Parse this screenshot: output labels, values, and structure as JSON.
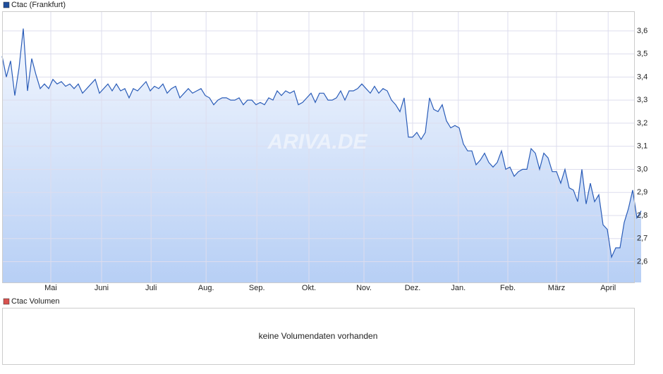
{
  "chart_data": {
    "type": "line",
    "legend": "Ctac (Frankfurt)",
    "legend_color": "#1f4e9c",
    "watermark": "ARIVA.DE",
    "volume_legend": "Ctac Volumen",
    "volume_legend_color": "#d9534f",
    "volume_message": "keine Volumendaten vorhanden",
    "grid": true,
    "line_color": "#2a5cb8",
    "xlim": [
      0,
      149.33
    ],
    "xticks": [
      {
        "value": 11.5,
        "label": "Mai"
      },
      {
        "value": 23.5,
        "label": "Juni"
      },
      {
        "value": 35.2,
        "label": "Juli"
      },
      {
        "value": 48.2,
        "label": "Aug."
      },
      {
        "value": 60.2,
        "label": "Sep."
      },
      {
        "value": 72.5,
        "label": "Okt."
      },
      {
        "value": 85.5,
        "label": "Nov."
      },
      {
        "value": 97,
        "label": "Dez."
      },
      {
        "value": 107.8,
        "label": "Jan."
      },
      {
        "value": 119.5,
        "label": "Feb."
      },
      {
        "value": 131,
        "label": "März"
      },
      {
        "value": 143.2,
        "label": "April"
      }
    ],
    "ylim": [
      2.51,
      3.685
    ],
    "yticks": [
      {
        "value": 2.6,
        "label": "2,6"
      },
      {
        "value": 2.7,
        "label": "2,7"
      },
      {
        "value": 2.8,
        "label": "2,8"
      },
      {
        "value": 2.9,
        "label": "2,9"
      },
      {
        "value": 3.0,
        "label": "3,0"
      },
      {
        "value": 3.1,
        "label": "3,1"
      },
      {
        "value": 3.2,
        "label": "3,2"
      },
      {
        "value": 3.3,
        "label": "3,3"
      },
      {
        "value": 3.4,
        "label": "3,4"
      },
      {
        "value": 3.5,
        "label": "3,5"
      },
      {
        "value": 3.6,
        "label": "3,6"
      }
    ],
    "values": [
      3.49,
      3.4,
      3.47,
      3.32,
      3.44,
      3.61,
      3.34,
      3.48,
      3.41,
      3.35,
      3.37,
      3.35,
      3.39,
      3.37,
      3.38,
      3.36,
      3.37,
      3.35,
      3.37,
      3.33,
      3.35,
      3.37,
      3.39,
      3.33,
      3.35,
      3.37,
      3.34,
      3.37,
      3.34,
      3.35,
      3.31,
      3.35,
      3.34,
      3.36,
      3.38,
      3.34,
      3.36,
      3.35,
      3.37,
      3.33,
      3.35,
      3.36,
      3.31,
      3.33,
      3.35,
      3.33,
      3.34,
      3.35,
      3.32,
      3.31,
      3.28,
      3.3,
      3.31,
      3.31,
      3.3,
      3.3,
      3.31,
      3.28,
      3.3,
      3.3,
      3.28,
      3.29,
      3.28,
      3.31,
      3.3,
      3.34,
      3.32,
      3.34,
      3.33,
      3.34,
      3.28,
      3.29,
      3.31,
      3.33,
      3.29,
      3.33,
      3.33,
      3.3,
      3.3,
      3.31,
      3.34,
      3.3,
      3.34,
      3.34,
      3.35,
      3.37,
      3.35,
      3.33,
      3.36,
      3.33,
      3.35,
      3.34,
      3.3,
      3.28,
      3.25,
      3.31,
      3.14,
      3.14,
      3.16,
      3.13,
      3.16,
      3.31,
      3.26,
      3.25,
      3.28,
      3.21,
      3.18,
      3.19,
      3.18,
      3.11,
      3.08,
      3.08,
      3.02,
      3.04,
      3.07,
      3.03,
      3.01,
      3.03,
      3.08,
      3.0,
      3.01,
      2.97,
      2.99,
      3.0,
      3.0,
      3.09,
      3.07,
      3.0,
      3.07,
      3.05,
      2.99,
      2.99,
      2.94,
      3.0,
      2.92,
      2.91,
      2.86,
      3.0,
      2.85,
      2.94,
      2.86,
      2.89,
      2.76,
      2.74,
      2.62,
      2.66,
      2.66,
      2.77,
      2.83,
      2.91,
      2.79,
      2.82
    ]
  }
}
